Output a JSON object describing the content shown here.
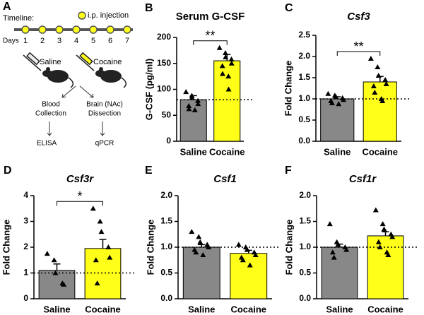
{
  "schematic": {
    "panel": "A",
    "timeline_label": "Timeline:",
    "legend": "i.p. injection",
    "days_label": "Days",
    "days": [
      1,
      2,
      3,
      4,
      5,
      6,
      7
    ],
    "treatments": [
      "Saline",
      "Cocaine"
    ],
    "procedures": [
      [
        "Blood",
        "Collection"
      ],
      [
        "Brain (NAc)",
        "Dissection"
      ]
    ],
    "assays": [
      "ELISA",
      "qPCR"
    ]
  },
  "chart_data": [
    {
      "type": "bar",
      "panel": "B",
      "title": "Serum G-CSF",
      "title_italic": false,
      "y_label": "G-CSF (pg/ml)",
      "categories": [
        "Saline",
        "Cocaine"
      ],
      "colors": [
        "#888888",
        "#ffff1a"
      ],
      "values": [
        80,
        155
      ],
      "errors": [
        8,
        12
      ],
      "points": [
        [
          95,
          88,
          84,
          78,
          72,
          68,
          62,
          60
        ],
        [
          180,
          170,
          162,
          158,
          150,
          145,
          130,
          125,
          100
        ]
      ],
      "reference_line": 80,
      "significance": "**",
      "ylim": [
        0,
        200
      ],
      "yticks": [
        0,
        50,
        100,
        150,
        200
      ]
    },
    {
      "type": "bar",
      "panel": "C",
      "title": "Csf3",
      "title_italic": true,
      "y_label": "Fold Change",
      "categories": [
        "Saline",
        "Cocaine"
      ],
      "colors": [
        "#888888",
        "#ffff1a"
      ],
      "values": [
        1.0,
        1.4
      ],
      "errors": [
        0.05,
        0.13
      ],
      "points": [
        [
          1.12,
          1.08,
          1.05,
          1.02,
          0.98,
          0.95,
          0.9,
          0.88
        ],
        [
          1.95,
          1.75,
          1.55,
          1.45,
          1.35,
          1.3,
          1.15,
          1.0,
          0.95
        ]
      ],
      "reference_line": 1,
      "significance": "**",
      "ylim": [
        0,
        2.5
      ],
      "yticks": [
        {
          "value": 0,
          "label": "0.0"
        },
        {
          "value": 0.5,
          "label": "0.5"
        },
        {
          "value": 1,
          "label": "1.0"
        },
        {
          "value": 1.5,
          "label": "1.5"
        },
        {
          "value": 2,
          "label": "2.0"
        },
        {
          "value": 2.5,
          "label": "2.5"
        }
      ]
    },
    {
      "type": "bar",
      "panel": "D",
      "title": "Csf3r",
      "title_italic": true,
      "y_label": "Fold Change",
      "categories": [
        "Saline",
        "Cocaine"
      ],
      "colors": [
        "#888888",
        "#ffff1a"
      ],
      "values": [
        1.1,
        1.95
      ],
      "errors": [
        0.25,
        0.35
      ],
      "points": [
        [
          1.75,
          1.5,
          1.0,
          0.6,
          0.55
        ],
        [
          3.5,
          3.0,
          2.6,
          2.0,
          1.6,
          1.5,
          0.6
        ]
      ],
      "reference_line": 1,
      "significance": "*",
      "ylim": [
        0,
        4
      ],
      "yticks": [
        0,
        1,
        2,
        3,
        4
      ]
    },
    {
      "type": "bar",
      "panel": "E",
      "title": "Csf1",
      "title_italic": true,
      "y_label": "Fold Change",
      "categories": [
        "Saline",
        "Cocaine"
      ],
      "colors": [
        "#888888",
        "#ffff1a"
      ],
      "values": [
        1.0,
        0.88
      ],
      "errors": [
        0.05,
        0.06
      ],
      "points": [
        [
          1.3,
          1.2,
          1.1,
          1.05,
          1.0,
          0.95,
          0.9,
          0.85
        ],
        [
          1.05,
          1.0,
          0.95,
          0.9,
          0.85,
          0.8,
          0.75,
          0.65
        ]
      ],
      "reference_line": 1,
      "ylim": [
        0,
        2
      ],
      "yticks": [
        {
          "value": 0,
          "label": "0.0"
        },
        {
          "value": 0.5,
          "label": "0.5"
        },
        {
          "value": 1,
          "label": "1.0"
        },
        {
          "value": 1.5,
          "label": "1.5"
        },
        {
          "value": 2,
          "label": "2.0"
        }
      ]
    },
    {
      "type": "bar",
      "panel": "F",
      "title": "Csf1r",
      "title_italic": true,
      "y_label": "Fold Change",
      "categories": [
        "Saline",
        "Cocaine"
      ],
      "colors": [
        "#888888",
        "#ffff1a"
      ],
      "values": [
        1.0,
        1.22
      ],
      "errors": [
        0.06,
        0.08
      ],
      "points": [
        [
          1.45,
          1.1,
          1.05,
          1.0,
          0.95,
          0.9,
          0.8
        ],
        [
          1.72,
          1.45,
          1.35,
          1.25,
          1.2,
          1.1,
          1.0,
          0.9,
          0.85
        ]
      ],
      "reference_line": 1,
      "ylim": [
        0,
        2
      ],
      "yticks": [
        {
          "value": 0,
          "label": "0.0"
        },
        {
          "value": 0.5,
          "label": "0.5"
        },
        {
          "value": 1,
          "label": "1.0"
        },
        {
          "value": 1.5,
          "label": "1.5"
        },
        {
          "value": 2,
          "label": "2.0"
        }
      ]
    }
  ]
}
